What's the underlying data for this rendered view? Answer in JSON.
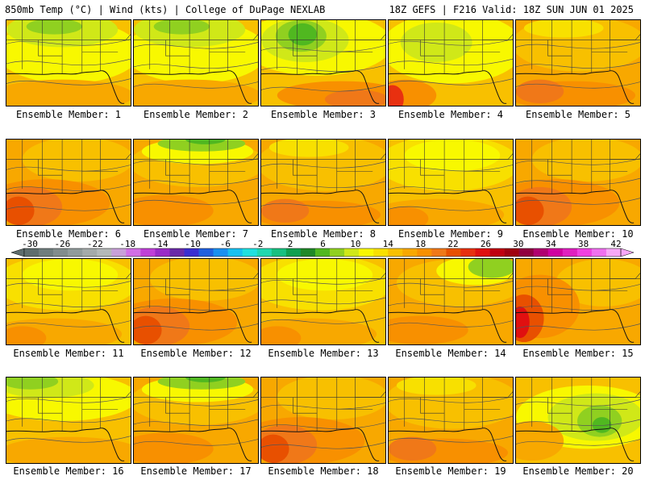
{
  "header": {
    "left": "850mb Temp (°C) | Wind (kts) | College of DuPage NEXLAB",
    "right": "18Z GEFS | F216 Valid: 18Z SUN JUN 01 2025"
  },
  "members": [
    {
      "label": "Ensemble Member: 1",
      "field": "warm-yellow-green-north"
    },
    {
      "label": "Ensemble Member: 2",
      "field": "warm-yellow-green-north"
    },
    {
      "label": "Ensemble Member: 3",
      "field": "green-low-center"
    },
    {
      "label": "Ensemble Member: 4",
      "field": "yellow-red-southwest"
    },
    {
      "label": "Ensemble Member: 5",
      "field": "orange"
    },
    {
      "label": "Ensemble Member: 6",
      "field": "orange-red"
    },
    {
      "label": "Ensemble Member: 7",
      "field": "orange-green-north"
    },
    {
      "label": "Ensemble Member: 8",
      "field": "orange"
    },
    {
      "label": "Ensemble Member: 9",
      "field": "yellow-orange"
    },
    {
      "label": "Ensemble Member: 10",
      "field": "orange-red"
    },
    {
      "label": "Ensemble Member: 11",
      "field": "yellow-orange"
    },
    {
      "label": "Ensemble Member: 12",
      "field": "orange-red"
    },
    {
      "label": "Ensemble Member: 13",
      "field": "yellow-orange"
    },
    {
      "label": "Ensemble Member: 14",
      "field": "orange-green-northeast"
    },
    {
      "label": "Ensemble Member: 15",
      "field": "orange-red-west"
    },
    {
      "label": "Ensemble Member: 16",
      "field": "yellow-green-north"
    },
    {
      "label": "Ensemble Member: 17",
      "field": "orange-green-north"
    },
    {
      "label": "Ensemble Member: 18",
      "field": "orange-red"
    },
    {
      "label": "Ensemble Member: 19",
      "field": "orange"
    },
    {
      "label": "Ensemble Member: 20",
      "field": "yellow-green-center"
    }
  ],
  "colorbar": {
    "ticks": [
      "-30",
      "-26",
      "-22",
      "-18",
      "-14",
      "-10",
      "-6",
      "-2",
      "2",
      "6",
      "10",
      "14",
      "18",
      "22",
      "26",
      "30",
      "34",
      "38",
      "42"
    ],
    "colors": [
      "#5e6d6d",
      "#6f7d7d",
      "#818c8c",
      "#909b9b",
      "#a4aaaa",
      "#b4b9b9",
      "#c8a0d8",
      "#d26ee6",
      "#bf40d8",
      "#9a2cc8",
      "#6a2aa8",
      "#3a2ed0",
      "#2060e0",
      "#1a90f0",
      "#18c0f0",
      "#20e0e0",
      "#20d8b0",
      "#18c080",
      "#10a050",
      "#208828",
      "#50b820",
      "#90d020",
      "#d0e818",
      "#f8f800",
      "#f8e000",
      "#f8c000",
      "#f8a800",
      "#f89000",
      "#f07818",
      "#e85000",
      "#e83010",
      "#e01010",
      "#c00010",
      "#a00010",
      "#900040",
      "#b00070",
      "#d000a0",
      "#e020c0",
      "#f040e0",
      "#f070f0",
      "#f8a8f8"
    ]
  }
}
